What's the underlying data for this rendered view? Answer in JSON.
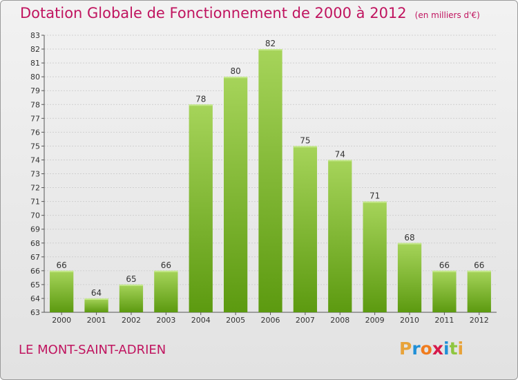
{
  "title": "Dotation Globale de Fonctionnement de 2000 à 2012",
  "subtitle": "(en milliers d'€)",
  "commune": "LE MONT-SAINT-ADRIEN",
  "logo_text": "Proxiti",
  "colors": {
    "accent": "#c0145f",
    "bar_light": "#a6d45a",
    "bar_dark": "#5c9a10",
    "grid": "#cfcfcf"
  },
  "chart_data": {
    "type": "bar",
    "title": "Dotation Globale de Fonctionnement de 2000 à 2012",
    "subtitle": "(en milliers d'€)",
    "xlabel": "",
    "ylabel": "",
    "categories": [
      "2000",
      "2001",
      "2002",
      "2003",
      "2004",
      "2005",
      "2006",
      "2007",
      "2008",
      "2009",
      "2010",
      "2011",
      "2012"
    ],
    "values": [
      66,
      64,
      65,
      66,
      78,
      80,
      82,
      75,
      74,
      71,
      68,
      66,
      66
    ],
    "ylim": [
      63,
      83
    ],
    "ytick_step": 1,
    "grid": true,
    "legend": "none"
  }
}
